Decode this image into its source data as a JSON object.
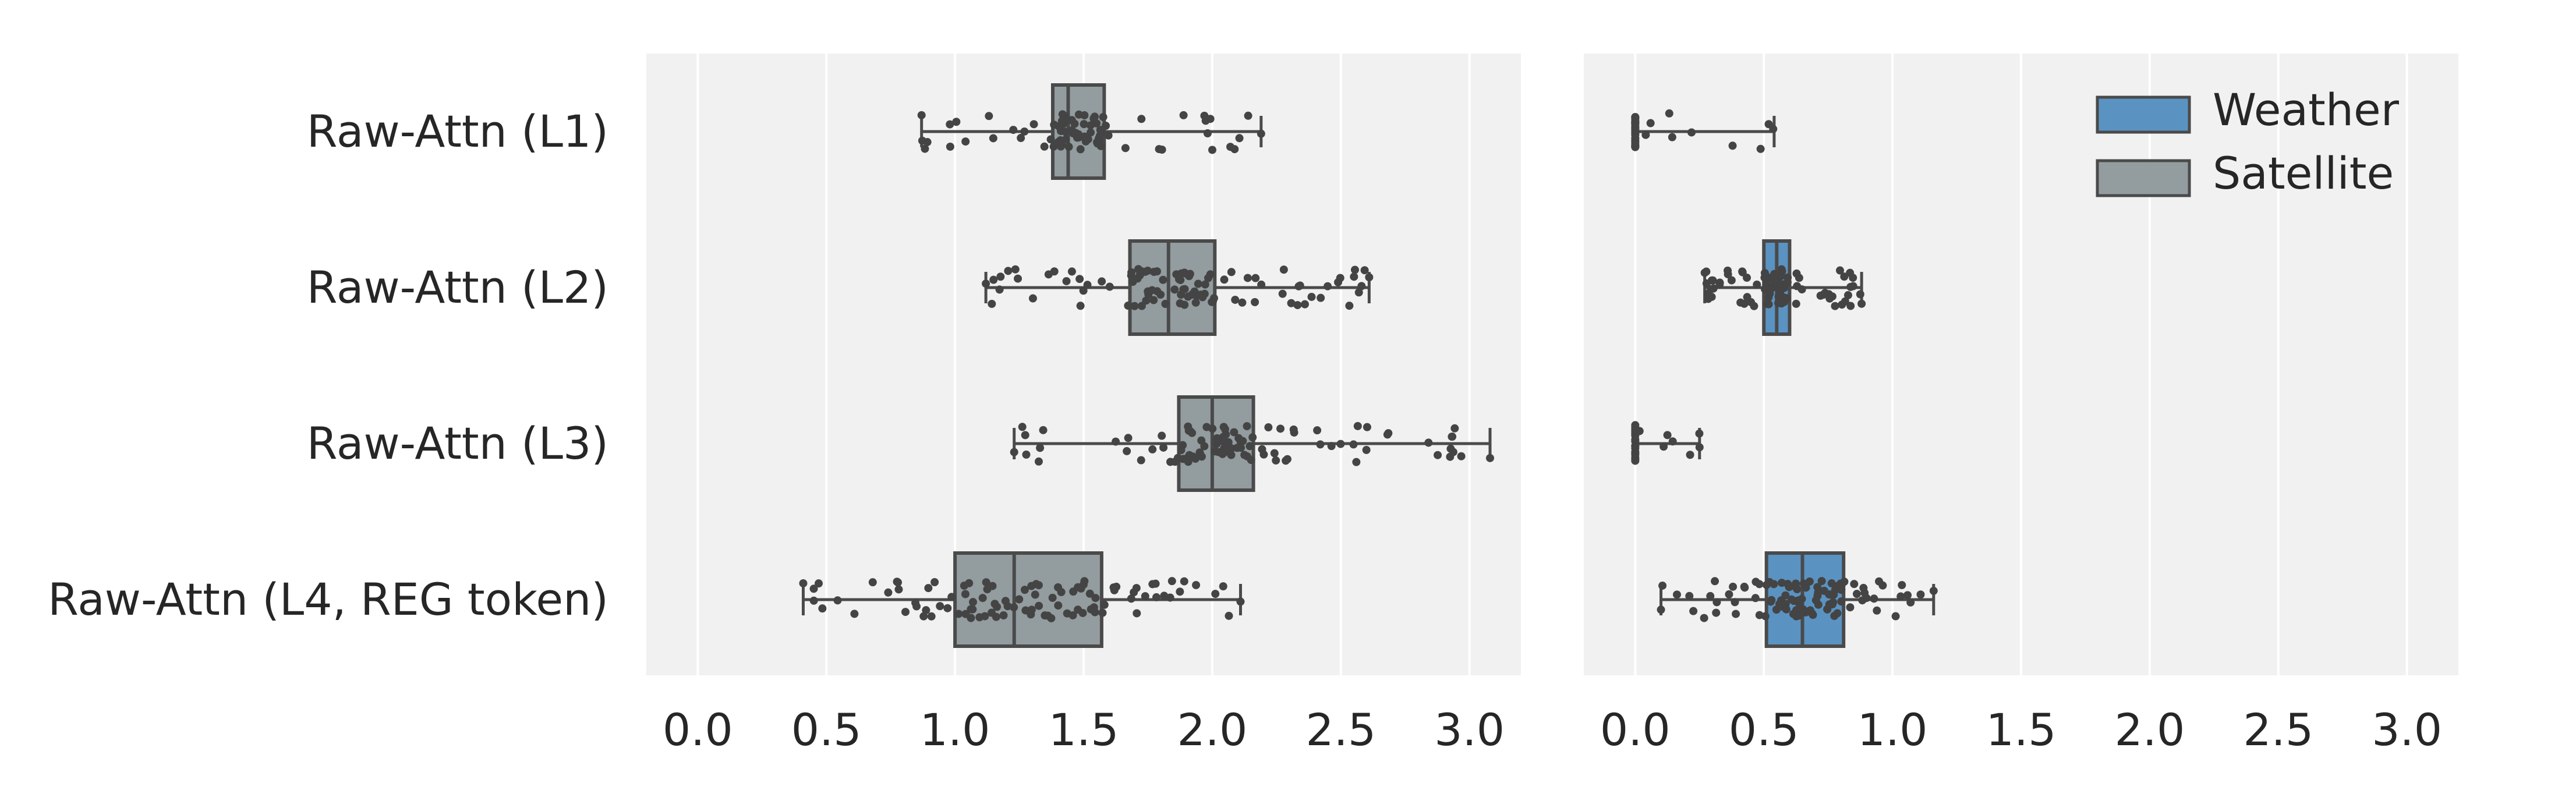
{
  "chart_data": {
    "type": "boxplot",
    "orientation": "horizontal",
    "categories": [
      "Raw-Attn (L1)",
      "Raw-Attn (L2)",
      "Raw-Attn (L3)",
      "Raw-Attn (L4, REG token)"
    ],
    "xlim": [
      -0.2,
      3.2
    ],
    "xticks": [
      "0.0",
      "0.5",
      "1.0",
      "1.5",
      "2.0",
      "2.5",
      "3.0"
    ],
    "grid": true,
    "legend": {
      "position": "top-right",
      "entries": [
        "Weather",
        "Satellite"
      ]
    },
    "colors": {
      "Weather": "#5a93c2",
      "Satellite": "#939c9f",
      "edge": "#4a4a4a",
      "points": "#444444",
      "background": "#f1f1f1"
    },
    "panels": [
      {
        "series": "Satellite",
        "boxes": [
          {
            "category": "Raw-Attn (L1)",
            "whislo": 0.87,
            "q1": 1.38,
            "med": 1.44,
            "q3": 1.58,
            "whishi": 2.19,
            "spread": [
              0.87,
              2.19
            ],
            "n": 80
          },
          {
            "category": "Raw-Attn (L2)",
            "whislo": 1.12,
            "q1": 1.68,
            "med": 1.83,
            "q3": 2.01,
            "whishi": 2.61,
            "spread": [
              1.12,
              2.61
            ],
            "n": 100
          },
          {
            "category": "Raw-Attn (L3)",
            "whislo": 1.23,
            "q1": 1.87,
            "med": 2.0,
            "q3": 2.16,
            "whishi": 3.08,
            "spread": [
              1.23,
              3.08
            ],
            "n": 100
          },
          {
            "category": "Raw-Attn (L4, REG token)",
            "whislo": 0.41,
            "q1": 1.0,
            "med": 1.23,
            "q3": 1.57,
            "whishi": 2.11,
            "spread": [
              0.41,
              2.11
            ],
            "n": 100
          }
        ]
      },
      {
        "series": "Weather",
        "boxes": [
          {
            "category": "Raw-Attn (L1)",
            "whislo": 0.0,
            "q1": 0.0,
            "med": 0.0,
            "q3": 0.0,
            "whishi": 0.54,
            "spread": [
              0.0,
              0.54
            ],
            "n": 40
          },
          {
            "category": "Raw-Attn (L2)",
            "whislo": 0.27,
            "q1": 0.5,
            "med": 0.55,
            "q3": 0.6,
            "whishi": 0.88,
            "spread": [
              0.27,
              0.88
            ],
            "n": 90
          },
          {
            "category": "Raw-Attn (L3)",
            "whislo": 0.0,
            "q1": 0.0,
            "med": 0.0,
            "q3": 0.0,
            "whishi": 0.25,
            "spread": [
              0.0,
              0.25
            ],
            "n": 25
          },
          {
            "category": "Raw-Attn (L4, REG token)",
            "whislo": 0.1,
            "q1": 0.51,
            "med": 0.65,
            "q3": 0.81,
            "whishi": 1.16,
            "spread": [
              0.1,
              1.16
            ],
            "n": 100
          }
        ]
      }
    ]
  }
}
